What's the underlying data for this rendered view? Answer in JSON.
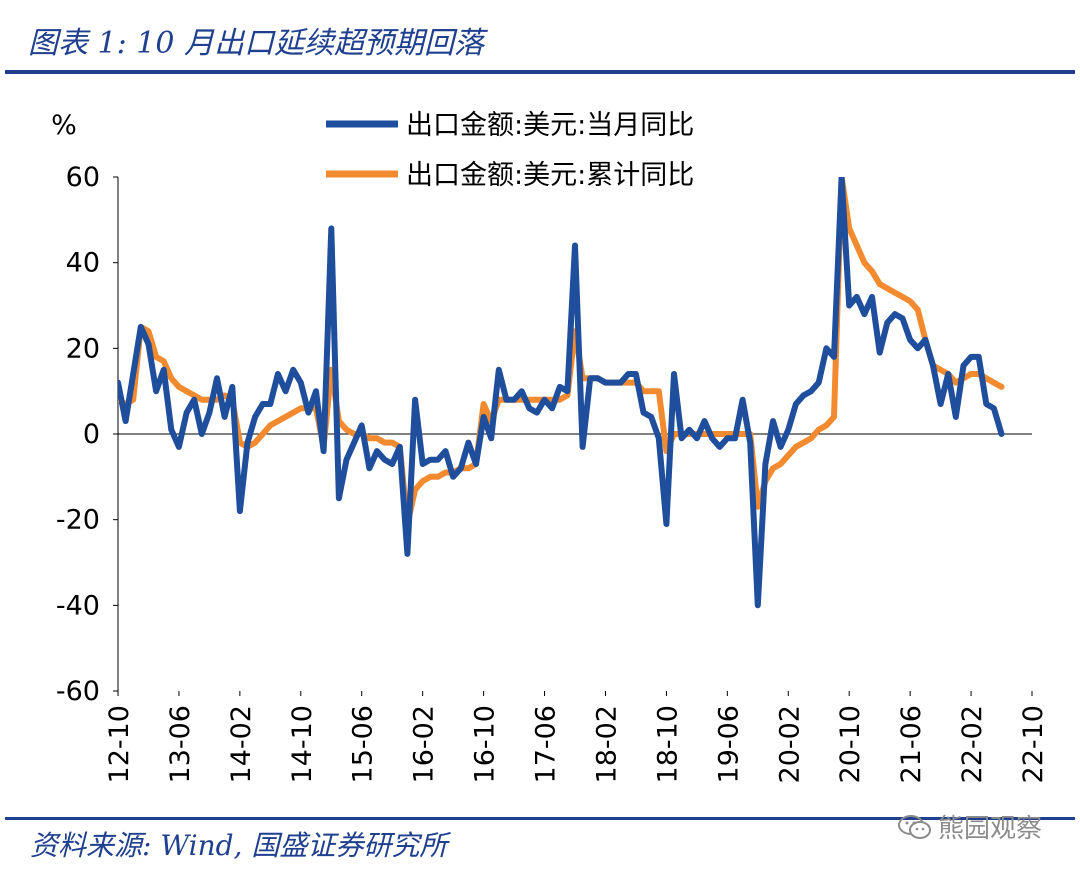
{
  "header": {
    "title": "图表 1:  10 月出口延续超预期回落"
  },
  "footer": {
    "source": "资料来源:  Wind,  国盛证券研究所"
  },
  "watermark": {
    "text": "熊园观察",
    "icon": "wechat-icon"
  },
  "colors": {
    "brand": "#1f3f8f",
    "series_monthly": "#1f4e9c",
    "series_cumulative": "#f28a30"
  },
  "chart_data": {
    "type": "line",
    "title": "图表 1:  10 月出口延续超预期回落",
    "ylabel": "%",
    "xlabel": "",
    "ylim": [
      -60,
      60
    ],
    "yticks": [
      "60",
      "40",
      "20",
      "0",
      "-20",
      "-40",
      "-60"
    ],
    "x_tick_labels": [
      "12-10",
      "13-06",
      "14-02",
      "14-10",
      "15-06",
      "16-02",
      "16-10",
      "17-06",
      "18-02",
      "18-10",
      "19-06",
      "20-02",
      "20-10",
      "21-06",
      "22-02",
      "22-10"
    ],
    "x_range": [
      "2012-10",
      "2022-10"
    ],
    "legend_position": "top-center",
    "series": [
      {
        "name": "出口金额:美元:当月同比",
        "color": "#1f4e9c",
        "points": [
          [
            0,
            12
          ],
          [
            1,
            3
          ],
          [
            2,
            14
          ],
          [
            3,
            25
          ],
          [
            4,
            21
          ],
          [
            5,
            10
          ],
          [
            6,
            15
          ],
          [
            7,
            1
          ],
          [
            8,
            -3
          ],
          [
            9,
            5
          ],
          [
            10,
            8
          ],
          [
            11,
            0
          ],
          [
            12,
            5
          ],
          [
            13,
            13
          ],
          [
            14,
            4
          ],
          [
            15,
            11
          ],
          [
            16,
            -18
          ],
          [
            17,
            -2
          ],
          [
            18,
            4
          ],
          [
            19,
            7
          ],
          [
            20,
            7
          ],
          [
            21,
            14
          ],
          [
            22,
            10
          ],
          [
            23,
            15
          ],
          [
            24,
            12
          ],
          [
            25,
            5
          ],
          [
            26,
            10
          ],
          [
            27,
            -4
          ],
          [
            28,
            48
          ],
          [
            29,
            -15
          ],
          [
            30,
            -6
          ],
          [
            31,
            -2
          ],
          [
            32,
            2
          ],
          [
            33,
            -8
          ],
          [
            34,
            -4
          ],
          [
            35,
            -6
          ],
          [
            36,
            -7
          ],
          [
            37,
            -3
          ],
          [
            38,
            -28
          ],
          [
            39,
            8
          ],
          [
            40,
            -7
          ],
          [
            41,
            -6
          ],
          [
            42,
            -6
          ],
          [
            43,
            -4
          ],
          [
            44,
            -10
          ],
          [
            45,
            -8
          ],
          [
            46,
            -2
          ],
          [
            47,
            -7
          ],
          [
            48,
            4
          ],
          [
            49,
            -1
          ],
          [
            50,
            15
          ],
          [
            51,
            8
          ],
          [
            52,
            8
          ],
          [
            53,
            10
          ],
          [
            54,
            6
          ],
          [
            55,
            5
          ],
          [
            56,
            8
          ],
          [
            57,
            6
          ],
          [
            58,
            11
          ],
          [
            59,
            10
          ],
          [
            60,
            44
          ],
          [
            61,
            -3
          ],
          [
            62,
            13
          ],
          [
            63,
            13
          ],
          [
            64,
            12
          ],
          [
            65,
            12
          ],
          [
            66,
            12
          ],
          [
            67,
            14
          ],
          [
            68,
            14
          ],
          [
            69,
            5
          ],
          [
            70,
            4
          ],
          [
            71,
            -1
          ],
          [
            72,
            -21
          ],
          [
            73,
            14
          ],
          [
            74,
            -1
          ],
          [
            75,
            1
          ],
          [
            76,
            -1
          ],
          [
            77,
            3
          ],
          [
            78,
            -1
          ],
          [
            79,
            -3
          ],
          [
            80,
            -1
          ],
          [
            81,
            -1
          ],
          [
            82,
            8
          ],
          [
            83,
            -2
          ],
          [
            84,
            -40
          ],
          [
            85,
            -7
          ],
          [
            86,
            3
          ],
          [
            87,
            -3
          ],
          [
            88,
            1
          ],
          [
            89,
            7
          ],
          [
            90,
            9
          ],
          [
            91,
            10
          ],
          [
            92,
            12
          ],
          [
            93,
            20
          ],
          [
            94,
            18
          ],
          [
            95,
            60
          ],
          [
            96,
            30
          ],
          [
            97,
            32
          ],
          [
            98,
            28
          ],
          [
            99,
            32
          ],
          [
            100,
            19
          ],
          [
            101,
            26
          ],
          [
            102,
            28
          ],
          [
            103,
            27
          ],
          [
            104,
            22
          ],
          [
            105,
            20
          ],
          [
            106,
            22
          ],
          [
            107,
            16
          ],
          [
            108,
            7
          ],
          [
            109,
            14
          ],
          [
            110,
            4
          ],
          [
            111,
            16
          ],
          [
            112,
            18
          ],
          [
            113,
            18
          ],
          [
            114,
            7
          ],
          [
            115,
            6
          ],
          [
            116,
            0
          ]
        ]
      },
      {
        "name": "出口金额:美元:累计同比",
        "color": "#f28a30",
        "points": [
          [
            0,
            8
          ],
          [
            1,
            7
          ],
          [
            2,
            8
          ],
          [
            3,
            25
          ],
          [
            4,
            24
          ],
          [
            5,
            18
          ],
          [
            6,
            17
          ],
          [
            7,
            13
          ],
          [
            8,
            11
          ],
          [
            9,
            10
          ],
          [
            10,
            9
          ],
          [
            11,
            8
          ],
          [
            12,
            8
          ],
          [
            13,
            8
          ],
          [
            14,
            9
          ],
          [
            15,
            8
          ],
          [
            16,
            -2
          ],
          [
            17,
            -3
          ],
          [
            18,
            -2
          ],
          [
            19,
            0
          ],
          [
            20,
            2
          ],
          [
            21,
            3
          ],
          [
            22,
            4
          ],
          [
            23,
            5
          ],
          [
            24,
            6
          ],
          [
            25,
            6
          ],
          [
            26,
            6
          ],
          [
            27,
            -3
          ],
          [
            28,
            15
          ],
          [
            29,
            3
          ],
          [
            30,
            1
          ],
          [
            31,
            0
          ],
          [
            32,
            0
          ],
          [
            33,
            -1
          ],
          [
            34,
            -1
          ],
          [
            35,
            -2
          ],
          [
            36,
            -2
          ],
          [
            37,
            -3
          ],
          [
            38,
            -21
          ],
          [
            39,
            -13
          ],
          [
            40,
            -11
          ],
          [
            41,
            -10
          ],
          [
            42,
            -10
          ],
          [
            43,
            -9
          ],
          [
            44,
            -9
          ],
          [
            45,
            -8
          ],
          [
            46,
            -8
          ],
          [
            47,
            -7
          ],
          [
            48,
            7
          ],
          [
            49,
            3
          ],
          [
            50,
            8
          ],
          [
            51,
            8
          ],
          [
            52,
            8
          ],
          [
            53,
            8
          ],
          [
            54,
            8
          ],
          [
            55,
            8
          ],
          [
            56,
            8
          ],
          [
            57,
            8
          ],
          [
            58,
            8
          ],
          [
            59,
            9
          ],
          [
            60,
            24
          ],
          [
            61,
            13
          ],
          [
            62,
            13
          ],
          [
            63,
            13
          ],
          [
            64,
            12
          ],
          [
            65,
            12
          ],
          [
            66,
            12
          ],
          [
            67,
            12
          ],
          [
            68,
            12
          ],
          [
            69,
            10
          ],
          [
            70,
            10
          ],
          [
            71,
            10
          ],
          [
            72,
            -4
          ],
          [
            73,
            0
          ],
          [
            74,
            0
          ],
          [
            75,
            0
          ],
          [
            76,
            0
          ],
          [
            77,
            0
          ],
          [
            78,
            0
          ],
          [
            79,
            0
          ],
          [
            80,
            0
          ],
          [
            81,
            0
          ],
          [
            82,
            0
          ],
          [
            83,
            0
          ],
          [
            84,
            -17
          ],
          [
            85,
            -11
          ],
          [
            86,
            -8
          ],
          [
            87,
            -7
          ],
          [
            88,
            -5
          ],
          [
            89,
            -3
          ],
          [
            90,
            -2
          ],
          [
            91,
            -1
          ],
          [
            92,
            1
          ],
          [
            93,
            2
          ],
          [
            94,
            4
          ],
          [
            95,
            60
          ],
          [
            96,
            48
          ],
          [
            97,
            44
          ],
          [
            98,
            40
          ],
          [
            99,
            38
          ],
          [
            100,
            35
          ],
          [
            101,
            34
          ],
          [
            102,
            33
          ],
          [
            103,
            32
          ],
          [
            104,
            31
          ],
          [
            105,
            29
          ],
          [
            106,
            22
          ],
          [
            107,
            16
          ],
          [
            108,
            15
          ],
          [
            109,
            14
          ],
          [
            110,
            12
          ],
          [
            111,
            13
          ],
          [
            112,
            14
          ],
          [
            113,
            14
          ],
          [
            114,
            13
          ],
          [
            115,
            12
          ],
          [
            116,
            11
          ]
        ]
      }
    ]
  }
}
